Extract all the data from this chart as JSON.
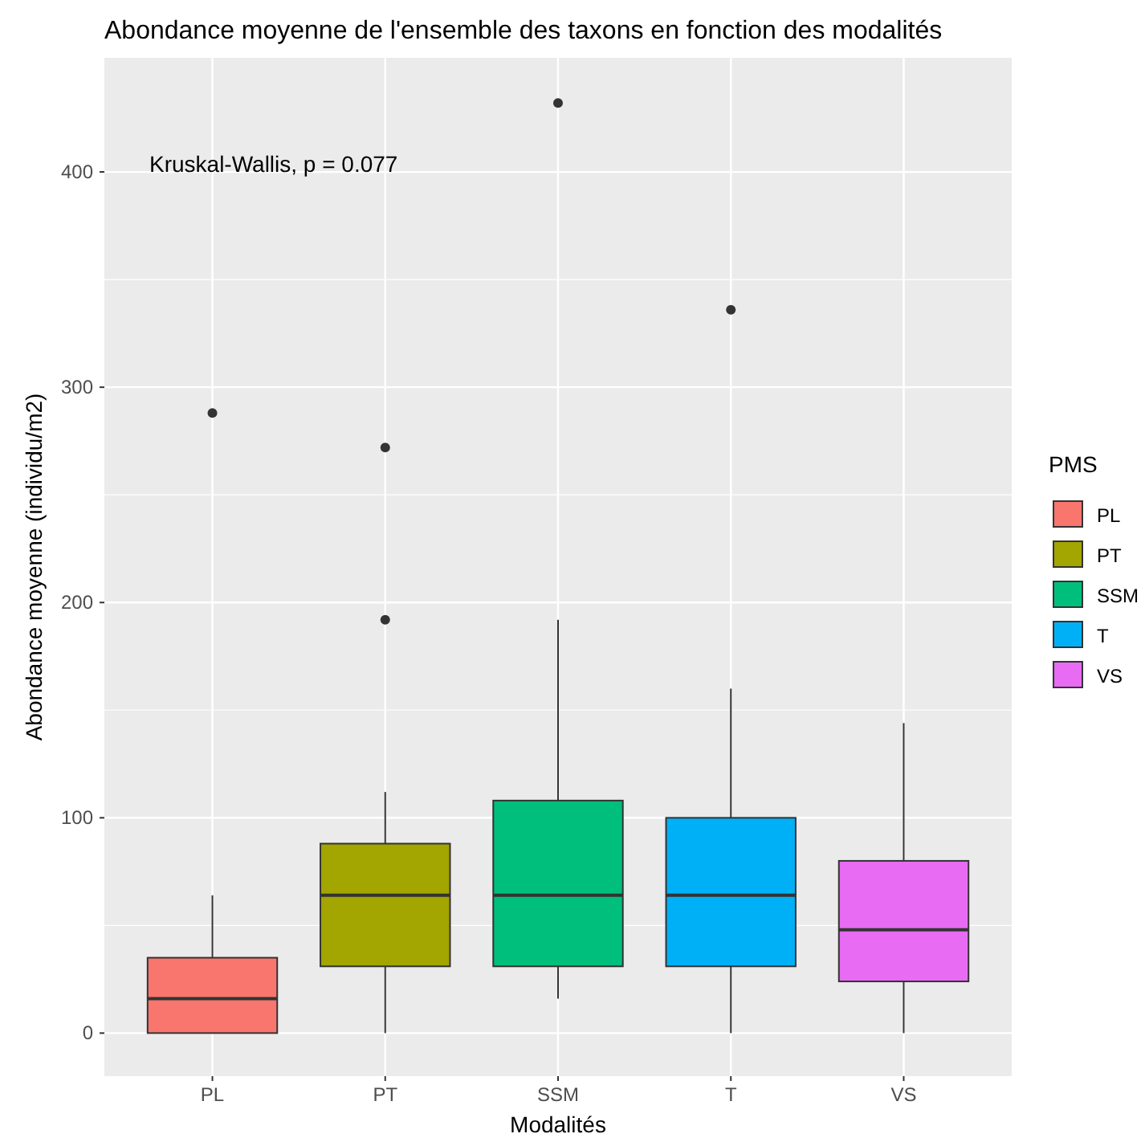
{
  "chart_data": {
    "type": "box",
    "title": "Abondance moyenne de l'ensemble des taxons en fonction des modalités",
    "xlabel": "Modalités",
    "ylabel": "Abondance moyenne (individu/m2)",
    "legend_title": "PMS",
    "annotations": [
      "Kruskal-Wallis, p = 0.077"
    ],
    "categories": [
      "PL",
      "PT",
      "SSM",
      "T",
      "VS"
    ],
    "series": [
      {
        "name": "PL",
        "color": "#f8766d",
        "boxes": [
          {
            "low": 0,
            "q1": 0,
            "median": 16,
            "q3": 35,
            "high": 64,
            "outliers": [
              288
            ]
          },
          null,
          null,
          null,
          null
        ]
      },
      {
        "name": "PT",
        "color": "#a3a500",
        "boxes": [
          null,
          {
            "low": 0,
            "q1": 31,
            "median": 64,
            "q3": 88,
            "high": 112,
            "outliers": [
              192,
              272
            ]
          },
          null,
          null,
          null
        ]
      },
      {
        "name": "SSM",
        "color": "#00bf7d",
        "boxes": [
          null,
          null,
          {
            "low": 16,
            "q1": 31,
            "median": 64,
            "q3": 108,
            "high": 192,
            "outliers": [
              432
            ]
          },
          null,
          null
        ]
      },
      {
        "name": "T",
        "color": "#00b0f6",
        "boxes": [
          null,
          null,
          null,
          {
            "low": 0,
            "q1": 31,
            "median": 64,
            "q3": 100,
            "high": 160,
            "outliers": [
              336
            ]
          },
          null
        ]
      },
      {
        "name": "VS",
        "color": "#e76bf3",
        "boxes": [
          null,
          null,
          null,
          null,
          {
            "low": 0,
            "q1": 24,
            "median": 48,
            "q3": 80,
            "high": 144
          }
        ]
      }
    ],
    "ylim": [
      -20,
      453
    ],
    "yticks": [
      0,
      100,
      200,
      300,
      400
    ],
    "grid": true,
    "legend": "right"
  }
}
